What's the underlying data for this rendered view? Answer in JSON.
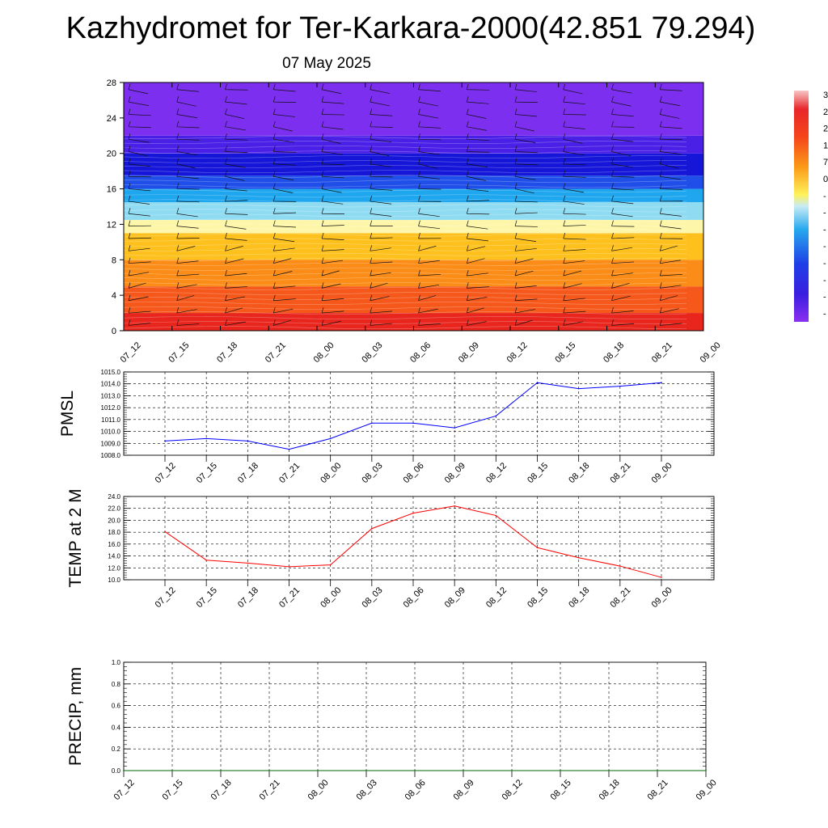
{
  "title": "Kazhydromet for Ter-Karkara-2000(42.851 79.294)",
  "subtitle": "07 May 2025",
  "time_labels": [
    "07_12",
    "07_15",
    "07_18",
    "07_21",
    "08_00",
    "08_03",
    "08_06",
    "08_09",
    "08_12",
    "08_15",
    "08_18",
    "08_21",
    "09_00"
  ],
  "colorbar_labels": [
    "3",
    "2",
    "2",
    "1",
    "7",
    "0",
    "-",
    "-",
    "-",
    "-",
    "-",
    "-",
    "-",
    "-"
  ],
  "chart_data": [
    {
      "type": "heatmap",
      "name": "vertical-profile",
      "x": [
        "07_12",
        "07_15",
        "07_18",
        "07_21",
        "08_00",
        "08_03",
        "08_06",
        "08_09",
        "08_12",
        "08_15",
        "08_18",
        "08_21",
        "09_00"
      ],
      "ylim": [
        0,
        28
      ],
      "yticks": [
        0,
        4,
        8,
        12,
        16,
        20,
        24,
        28
      ],
      "bands": [
        {
          "from": 0,
          "to": 2,
          "color": "#e8261e"
        },
        {
          "from": 2,
          "to": 5,
          "color": "#f5581a"
        },
        {
          "from": 5,
          "to": 8,
          "color": "#fb8c17"
        },
        {
          "from": 8,
          "to": 11,
          "color": "#fdc01c"
        },
        {
          "from": 11,
          "to": 12.5,
          "color": "#fdf6a8"
        },
        {
          "from": 12.5,
          "to": 14.5,
          "color": "#8fdcf2"
        },
        {
          "from": 14.5,
          "to": 16,
          "color": "#1ea6ee"
        },
        {
          "from": 16,
          "to": 17.5,
          "color": "#1f4fe8"
        },
        {
          "from": 17.5,
          "to": 20,
          "color": "#1616d9"
        },
        {
          "from": 20,
          "to": 22,
          "color": "#4a1fe6"
        },
        {
          "from": 22,
          "to": 28,
          "color": "#7d2ff0"
        }
      ]
    },
    {
      "type": "line",
      "name": "pmsl",
      "ylabel": "PMSL",
      "x": [
        "07_12",
        "07_15",
        "07_18",
        "07_21",
        "08_00",
        "08_03",
        "08_06",
        "08_09",
        "08_12",
        "08_15",
        "08_18",
        "08_21",
        "09_00"
      ],
      "values": [
        1009.2,
        1009.4,
        1009.2,
        1008.5,
        1009.4,
        1010.7,
        1010.7,
        1010.3,
        1011.3,
        1014.1,
        1013.6,
        1013.8,
        1014.1
      ],
      "ylim": [
        1008.0,
        1015.0
      ],
      "yticks": [
        "1008.0",
        "1009.0",
        "1010.0",
        "1011.0",
        "1012.0",
        "1013.0",
        "1014.0",
        "1015.0"
      ],
      "color": "#0000ff"
    },
    {
      "type": "line",
      "name": "temp-2m",
      "ylabel": "TEMP at 2 M",
      "x": [
        "07_12",
        "07_15",
        "07_18",
        "07_21",
        "08_00",
        "08_03",
        "08_06",
        "08_09",
        "08_12",
        "08_15",
        "08_18",
        "08_21",
        "09_00"
      ],
      "values": [
        18.1,
        13.3,
        12.8,
        12.2,
        12.5,
        18.6,
        21.2,
        22.4,
        20.8,
        15.4,
        13.7,
        12.3,
        10.4
      ],
      "ylim": [
        10.0,
        24.0
      ],
      "yticks": [
        "10.0",
        "12.0",
        "14.0",
        "16.0",
        "18.0",
        "20.0",
        "22.0",
        "24.0"
      ],
      "color": "#ff0000"
    },
    {
      "type": "line",
      "name": "precip",
      "ylabel": "PRECIP, mm",
      "x": [
        "07_12",
        "07_15",
        "07_18",
        "07_21",
        "08_00",
        "08_03",
        "08_06",
        "08_09",
        "08_12",
        "08_15",
        "08_18",
        "08_21",
        "09_00"
      ],
      "values": [
        0,
        0,
        0,
        0,
        0,
        0,
        0,
        0,
        0,
        0,
        0,
        0,
        0
      ],
      "ylim": [
        0.0,
        1.0
      ],
      "yticks": [
        "0.0",
        "0.2",
        "0.4",
        "0.6",
        "0.8",
        "1.0"
      ],
      "color": "#006400"
    }
  ]
}
